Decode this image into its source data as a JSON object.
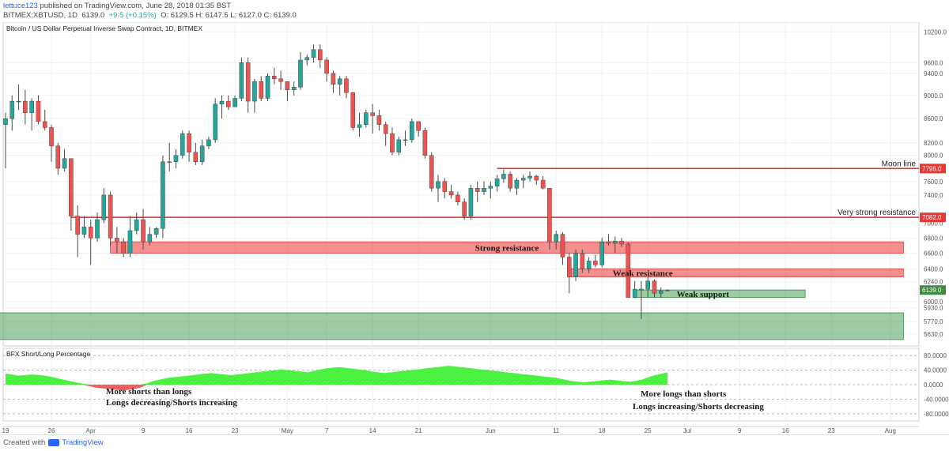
{
  "header": {
    "user": "lettuce123",
    "published": " published on TradingView.com, June 28, 2018 01:35 BST",
    "symbol": "BITMEX:XBTUSD, 1D",
    "last": "6139.0",
    "change": "+9.5 (+0.15%)",
    "ohlc": "O: 6129.5 H: 6147.5 L: 6127.0 C: 6139.0"
  },
  "footer": {
    "created_with": "Created with",
    "brand": "TradingView"
  },
  "colors": {
    "up": "#26a69a",
    "down": "#ef5350",
    "level_line": "#e53935",
    "zone_red": "rgba(239,83,80,0.65)",
    "zone_green": "rgba(76,160,90,0.55)",
    "sentiment_up": "#4cf040",
    "sentiment_down": "#f06060",
    "price_tag": "#e53935",
    "last_tag": "#3d8c40"
  },
  "chart_data": {
    "type": "candlestick",
    "title": "Bitcoin / US Dollar Perpetual Inverse Swap Contract, 1D, BITMEX",
    "y_axis": {
      "scale": "log",
      "ylim": [
        5500,
        10300
      ],
      "ticks": [
        "10200.0",
        "9600.0",
        "9400.0",
        "9000.0",
        "8600.0",
        "8200.0",
        "8000.0",
        "7600.0",
        "7400.0",
        "7000.0",
        "6800.0",
        "6600.0",
        "6400.0",
        "6240.0",
        "6000.0",
        "5930.0",
        "5770.0",
        "5630.0"
      ]
    },
    "x_axis": {
      "range": [
        "2018-03-19",
        "2018-08-05"
      ],
      "ticks": [
        {
          "date": "2018-03-19",
          "label": "19"
        },
        {
          "date": "2018-03-26",
          "label": "26"
        },
        {
          "date": "2018-04-01",
          "label": "Apr"
        },
        {
          "date": "2018-04-09",
          "label": "9"
        },
        {
          "date": "2018-04-16",
          "label": "16"
        },
        {
          "date": "2018-04-23",
          "label": "23"
        },
        {
          "date": "2018-05-01",
          "label": "May"
        },
        {
          "date": "2018-05-07",
          "label": "7"
        },
        {
          "date": "2018-05-14",
          "label": "14"
        },
        {
          "date": "2018-05-21",
          "label": "21"
        },
        {
          "date": "2018-06-01",
          "label": "Jun"
        },
        {
          "date": "2018-06-11",
          "label": "11"
        },
        {
          "date": "2018-06-18",
          "label": "18"
        },
        {
          "date": "2018-06-25",
          "label": "25"
        },
        {
          "date": "2018-07-01",
          "label": "Jul"
        },
        {
          "date": "2018-07-09",
          "label": "9"
        },
        {
          "date": "2018-07-16",
          "label": "16"
        },
        {
          "date": "2018-07-23",
          "label": "23"
        },
        {
          "date": "2018-08-01",
          "label": "Aug"
        }
      ]
    },
    "candles": [
      {
        "d": "2018-03-19",
        "o": 8500,
        "h": 8700,
        "l": 7800,
        "c": 8600
      },
      {
        "d": "2018-03-20",
        "o": 8600,
        "h": 9000,
        "l": 8400,
        "c": 8900
      },
      {
        "d": "2018-03-21",
        "o": 8900,
        "h": 9200,
        "l": 8750,
        "c": 8900
      },
      {
        "d": "2018-03-22",
        "o": 8900,
        "h": 9100,
        "l": 8500,
        "c": 8700
      },
      {
        "d": "2018-03-23",
        "o": 8700,
        "h": 8950,
        "l": 8400,
        "c": 8900
      },
      {
        "d": "2018-03-24",
        "o": 8900,
        "h": 9000,
        "l": 8500,
        "c": 8550
      },
      {
        "d": "2018-03-25",
        "o": 8550,
        "h": 8750,
        "l": 8400,
        "c": 8450
      },
      {
        "d": "2018-03-26",
        "o": 8450,
        "h": 8500,
        "l": 7900,
        "c": 8150
      },
      {
        "d": "2018-03-27",
        "o": 8150,
        "h": 8200,
        "l": 7700,
        "c": 7800
      },
      {
        "d": "2018-03-28",
        "o": 7800,
        "h": 8100,
        "l": 7750,
        "c": 7950
      },
      {
        "d": "2018-03-29",
        "o": 7950,
        "h": 7950,
        "l": 6900,
        "c": 7100
      },
      {
        "d": "2018-03-30",
        "o": 7100,
        "h": 7250,
        "l": 6550,
        "c": 6850
      },
      {
        "d": "2018-03-31",
        "o": 6850,
        "h": 7100,
        "l": 6800,
        "c": 6950
      },
      {
        "d": "2018-04-01",
        "o": 6950,
        "h": 7050,
        "l": 6450,
        "c": 6800
      },
      {
        "d": "2018-04-02",
        "o": 6800,
        "h": 7150,
        "l": 6750,
        "c": 7050
      },
      {
        "d": "2018-04-03",
        "o": 7050,
        "h": 7500,
        "l": 7000,
        "c": 7400
      },
      {
        "d": "2018-04-04",
        "o": 7400,
        "h": 7450,
        "l": 6700,
        "c": 6800
      },
      {
        "d": "2018-04-05",
        "o": 6800,
        "h": 6950,
        "l": 6600,
        "c": 6750
      },
      {
        "d": "2018-04-06",
        "o": 6750,
        "h": 6800,
        "l": 6550,
        "c": 6600
      },
      {
        "d": "2018-04-07",
        "o": 6600,
        "h": 7100,
        "l": 6550,
        "c": 6900
      },
      {
        "d": "2018-04-08",
        "o": 6900,
        "h": 7150,
        "l": 6850,
        "c": 7050
      },
      {
        "d": "2018-04-09",
        "o": 7050,
        "h": 7200,
        "l": 6650,
        "c": 6750
      },
      {
        "d": "2018-04-10",
        "o": 6750,
        "h": 6950,
        "l": 6700,
        "c": 6850
      },
      {
        "d": "2018-04-11",
        "o": 6850,
        "h": 6950,
        "l": 6800,
        "c": 6930
      },
      {
        "d": "2018-04-12",
        "o": 6930,
        "h": 8000,
        "l": 6800,
        "c": 7900
      },
      {
        "d": "2018-04-13",
        "o": 7900,
        "h": 8200,
        "l": 7750,
        "c": 7900
      },
      {
        "d": "2018-04-14",
        "o": 7900,
        "h": 8100,
        "l": 7800,
        "c": 8000
      },
      {
        "d": "2018-04-15",
        "o": 8000,
        "h": 8400,
        "l": 7950,
        "c": 8350
      },
      {
        "d": "2018-04-16",
        "o": 8350,
        "h": 8400,
        "l": 7900,
        "c": 8050
      },
      {
        "d": "2018-04-17",
        "o": 8050,
        "h": 8200,
        "l": 7850,
        "c": 7900
      },
      {
        "d": "2018-04-18",
        "o": 7900,
        "h": 8250,
        "l": 7850,
        "c": 8150
      },
      {
        "d": "2018-04-19",
        "o": 8150,
        "h": 8300,
        "l": 8100,
        "c": 8250
      },
      {
        "d": "2018-04-20",
        "o": 8250,
        "h": 8950,
        "l": 8200,
        "c": 8850
      },
      {
        "d": "2018-04-21",
        "o": 8850,
        "h": 9000,
        "l": 8600,
        "c": 8900
      },
      {
        "d": "2018-04-22",
        "o": 8900,
        "h": 9000,
        "l": 8750,
        "c": 8800
      },
      {
        "d": "2018-04-23",
        "o": 8800,
        "h": 9000,
        "l": 8800,
        "c": 8950
      },
      {
        "d": "2018-04-24",
        "o": 8950,
        "h": 9700,
        "l": 8900,
        "c": 9600
      },
      {
        "d": "2018-04-25",
        "o": 9600,
        "h": 9700,
        "l": 8700,
        "c": 8900
      },
      {
        "d": "2018-04-26",
        "o": 8900,
        "h": 9300,
        "l": 8700,
        "c": 9250
      },
      {
        "d": "2018-04-27",
        "o": 9250,
        "h": 9350,
        "l": 8900,
        "c": 8950
      },
      {
        "d": "2018-04-28",
        "o": 8950,
        "h": 9400,
        "l": 8900,
        "c": 9350
      },
      {
        "d": "2018-04-29",
        "o": 9350,
        "h": 9500,
        "l": 9200,
        "c": 9300
      },
      {
        "d": "2018-04-30",
        "o": 9300,
        "h": 9450,
        "l": 9100,
        "c": 9250
      },
      {
        "d": "2018-05-01",
        "o": 9250,
        "h": 9250,
        "l": 8900,
        "c": 9100
      },
      {
        "d": "2018-05-02",
        "o": 9100,
        "h": 9250,
        "l": 9000,
        "c": 9150
      },
      {
        "d": "2018-05-03",
        "o": 9150,
        "h": 9800,
        "l": 9100,
        "c": 9650
      },
      {
        "d": "2018-05-04",
        "o": 9650,
        "h": 9750,
        "l": 9550,
        "c": 9700
      },
      {
        "d": "2018-05-05",
        "o": 9700,
        "h": 9950,
        "l": 9600,
        "c": 9850
      },
      {
        "d": "2018-05-06",
        "o": 9850,
        "h": 9950,
        "l": 9500,
        "c": 9650
      },
      {
        "d": "2018-05-07",
        "o": 9650,
        "h": 9700,
        "l": 9250,
        "c": 9400
      },
      {
        "d": "2018-05-08",
        "o": 9400,
        "h": 9450,
        "l": 9050,
        "c": 9200
      },
      {
        "d": "2018-05-09",
        "o": 9200,
        "h": 9350,
        "l": 9000,
        "c": 9300
      },
      {
        "d": "2018-05-10",
        "o": 9300,
        "h": 9350,
        "l": 8950,
        "c": 9050
      },
      {
        "d": "2018-05-11",
        "o": 9050,
        "h": 9050,
        "l": 8400,
        "c": 8450
      },
      {
        "d": "2018-05-12",
        "o": 8450,
        "h": 8700,
        "l": 8300,
        "c": 8500
      },
      {
        "d": "2018-05-13",
        "o": 8500,
        "h": 8750,
        "l": 8450,
        "c": 8700
      },
      {
        "d": "2018-05-14",
        "o": 8700,
        "h": 8850,
        "l": 8350,
        "c": 8650
      },
      {
        "d": "2018-05-15",
        "o": 8650,
        "h": 8750,
        "l": 8400,
        "c": 8500
      },
      {
        "d": "2018-05-16",
        "o": 8500,
        "h": 8550,
        "l": 8150,
        "c": 8350
      },
      {
        "d": "2018-05-17",
        "o": 8350,
        "h": 8450,
        "l": 8000,
        "c": 8050
      },
      {
        "d": "2018-05-18",
        "o": 8050,
        "h": 8300,
        "l": 8000,
        "c": 8250
      },
      {
        "d": "2018-05-19",
        "o": 8250,
        "h": 8400,
        "l": 8150,
        "c": 8250
      },
      {
        "d": "2018-05-20",
        "o": 8250,
        "h": 8600,
        "l": 8200,
        "c": 8550
      },
      {
        "d": "2018-05-21",
        "o": 8550,
        "h": 8550,
        "l": 8300,
        "c": 8400
      },
      {
        "d": "2018-05-22",
        "o": 8400,
        "h": 8450,
        "l": 7950,
        "c": 8000
      },
      {
        "d": "2018-05-23",
        "o": 8000,
        "h": 8050,
        "l": 7450,
        "c": 7500
      },
      {
        "d": "2018-05-24",
        "o": 7500,
        "h": 7700,
        "l": 7300,
        "c": 7600
      },
      {
        "d": "2018-05-25",
        "o": 7600,
        "h": 7650,
        "l": 7350,
        "c": 7450
      },
      {
        "d": "2018-05-26",
        "o": 7450,
        "h": 7550,
        "l": 7350,
        "c": 7400
      },
      {
        "d": "2018-05-27",
        "o": 7400,
        "h": 7450,
        "l": 7250,
        "c": 7300
      },
      {
        "d": "2018-05-28",
        "o": 7300,
        "h": 7350,
        "l": 7050,
        "c": 7100
      },
      {
        "d": "2018-05-29",
        "o": 7100,
        "h": 7550,
        "l": 7050,
        "c": 7500
      },
      {
        "d": "2018-05-30",
        "o": 7500,
        "h": 7600,
        "l": 7300,
        "c": 7450
      },
      {
        "d": "2018-05-31",
        "o": 7450,
        "h": 7600,
        "l": 7400,
        "c": 7500
      },
      {
        "d": "2018-06-01",
        "o": 7500,
        "h": 7600,
        "l": 7350,
        "c": 7530
      },
      {
        "d": "2018-06-02",
        "o": 7530,
        "h": 7700,
        "l": 7450,
        "c": 7640
      },
      {
        "d": "2018-06-03",
        "o": 7640,
        "h": 7780,
        "l": 7580,
        "c": 7710
      },
      {
        "d": "2018-06-04",
        "o": 7710,
        "h": 7750,
        "l": 7450,
        "c": 7500
      },
      {
        "d": "2018-06-05",
        "o": 7500,
        "h": 7650,
        "l": 7400,
        "c": 7620
      },
      {
        "d": "2018-06-06",
        "o": 7620,
        "h": 7700,
        "l": 7500,
        "c": 7650
      },
      {
        "d": "2018-06-07",
        "o": 7650,
        "h": 7750,
        "l": 7600,
        "c": 7680
      },
      {
        "d": "2018-06-08",
        "o": 7680,
        "h": 7700,
        "l": 7550,
        "c": 7620
      },
      {
        "d": "2018-06-09",
        "o": 7620,
        "h": 7680,
        "l": 7480,
        "c": 7500
      },
      {
        "d": "2018-06-10",
        "o": 7500,
        "h": 7500,
        "l": 6650,
        "c": 6750
      },
      {
        "d": "2018-06-11",
        "o": 6750,
        "h": 6900,
        "l": 6650,
        "c": 6850
      },
      {
        "d": "2018-06-12",
        "o": 6850,
        "h": 6880,
        "l": 6450,
        "c": 6550
      },
      {
        "d": "2018-06-13",
        "o": 6550,
        "h": 6600,
        "l": 6100,
        "c": 6300
      },
      {
        "d": "2018-06-14",
        "o": 6300,
        "h": 6650,
        "l": 6250,
        "c": 6600
      },
      {
        "d": "2018-06-15",
        "o": 6600,
        "h": 6650,
        "l": 6350,
        "c": 6400
      },
      {
        "d": "2018-06-16",
        "o": 6400,
        "h": 6550,
        "l": 6350,
        "c": 6500
      },
      {
        "d": "2018-06-17",
        "o": 6500,
        "h": 6580,
        "l": 6420,
        "c": 6450
      },
      {
        "d": "2018-06-18",
        "o": 6450,
        "h": 6800,
        "l": 6420,
        "c": 6750
      },
      {
        "d": "2018-06-19",
        "o": 6750,
        "h": 6850,
        "l": 6700,
        "c": 6730
      },
      {
        "d": "2018-06-20",
        "o": 6730,
        "h": 6820,
        "l": 6600,
        "c": 6760
      },
      {
        "d": "2018-06-21",
        "o": 6760,
        "h": 6800,
        "l": 6680,
        "c": 6720
      },
      {
        "d": "2018-06-22",
        "o": 6720,
        "h": 6740,
        "l": 6050,
        "c": 6050
      },
      {
        "d": "2018-06-23",
        "o": 6050,
        "h": 6250,
        "l": 6040,
        "c": 6150
      },
      {
        "d": "2018-06-24",
        "o": 6150,
        "h": 6250,
        "l": 5800,
        "c": 6150
      },
      {
        "d": "2018-06-25",
        "o": 6150,
        "h": 6300,
        "l": 6050,
        "c": 6250
      },
      {
        "d": "2018-06-26",
        "o": 6250,
        "h": 6270,
        "l": 6050,
        "c": 6100
      },
      {
        "d": "2018-06-27",
        "o": 6100,
        "h": 6170,
        "l": 6050,
        "c": 6130
      },
      {
        "d": "2018-06-28",
        "o": 6129.5,
        "h": 6147.5,
        "l": 6127,
        "c": 6139
      }
    ],
    "levels": [
      {
        "label": "Moon line",
        "price": 7796,
        "tag": "7796.0",
        "from": "2018-06-02"
      },
      {
        "label": "Very strong resistance",
        "price": 7082,
        "tag": "7082.0",
        "from": "2018-03-29"
      }
    ],
    "zones": [
      {
        "label": "Strong resistance",
        "color": "red",
        "lo": 6600,
        "hi": 6750,
        "from": "2018-04-04",
        "to": "2018-08-03"
      },
      {
        "label": "Weak resistance",
        "color": "red",
        "lo": 6300,
        "hi": 6400,
        "from": "2018-06-13",
        "to": "2018-08-03"
      },
      {
        "label": "Weak support",
        "color": "green",
        "lo": 6050,
        "hi": 6140,
        "from": "2018-06-23",
        "to": "2018-07-19"
      },
      {
        "label": "",
        "color": "green",
        "lo": 5570,
        "hi": 5870,
        "from": "2018-03-18",
        "to": "2018-08-03"
      }
    ],
    "current_price": {
      "value": 6139.0,
      "tag": "6139.0"
    },
    "indicator": {
      "name": "BFX Short/Long Percentage",
      "ylim": [
        -100,
        100
      ],
      "ticks": [
        "80.0000",
        "40.0000",
        "0.0000",
        "-40.0000",
        "-80.0000"
      ],
      "note_left": [
        "More shorts than longs",
        "Longs decreasing/Shorts increasing"
      ],
      "note_right": [
        "More longs than shorts",
        "Longs increasing/Shorts decreasing"
      ],
      "values": [
        30,
        28,
        25,
        26,
        28,
        27,
        25,
        22,
        18,
        14,
        10,
        6,
        3,
        -4,
        -8,
        -10,
        -12,
        -14,
        -16,
        -15,
        -12,
        -8,
        4,
        10,
        14,
        18,
        20,
        22,
        24,
        26,
        28,
        30,
        32,
        30,
        28,
        26,
        28,
        30,
        32,
        34,
        36,
        38,
        40,
        42,
        40,
        38,
        36,
        34,
        38,
        42,
        45,
        47,
        48,
        46,
        44,
        42,
        40,
        36,
        34,
        32,
        34,
        36,
        38,
        40,
        42,
        44,
        46,
        48,
        50,
        52,
        50,
        48,
        46,
        44,
        42,
        40,
        38,
        36,
        34,
        32,
        30,
        28,
        26,
        24,
        22,
        20,
        18,
        14,
        10,
        8,
        6,
        8,
        10,
        12,
        14,
        12,
        10,
        8,
        10,
        14,
        20,
        26,
        30,
        34
      ]
    }
  }
}
